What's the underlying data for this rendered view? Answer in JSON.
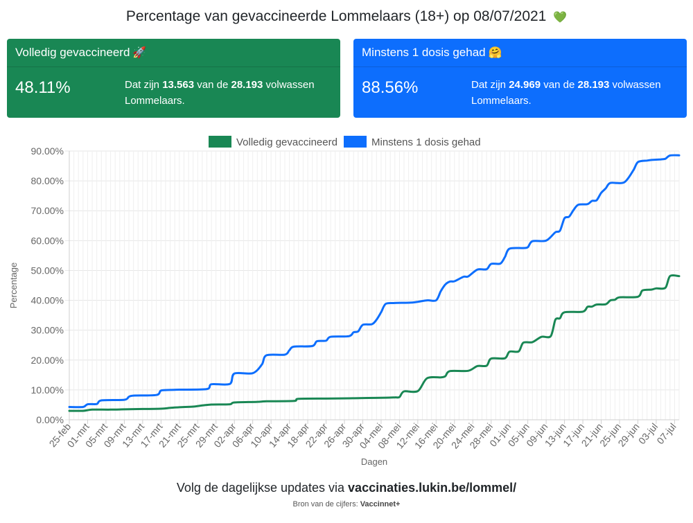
{
  "header": {
    "title": "Percentage van gevaccineerde Lommelaars (18+) op 08/07/2021",
    "title_emoji": "💚"
  },
  "cards": {
    "full": {
      "title": "Volledig gevaccineerd",
      "emoji": "🚀",
      "percent": "48.11%",
      "text_prefix": "Dat zijn",
      "count": "13.563",
      "text_mid": "van de",
      "total": "28.193",
      "text_suffix": "volwassen Lommelaars.",
      "color": "#198754"
    },
    "partial": {
      "title": "Minstens 1 dosis gehad",
      "emoji": "🤗",
      "percent": "88.56%",
      "text_prefix": "Dat zijn",
      "count": "24.969",
      "text_mid": "van de",
      "total": "28.193",
      "text_suffix": "volwassen Lommelaars.",
      "color": "#0d6efd"
    }
  },
  "footer": {
    "text": "Volg de dagelijkse updates via",
    "link": "vaccinaties.lukin.be/lommel/",
    "source_label": "Bron van de cijfers:",
    "source": "Vaccinnet+"
  },
  "chart_data": {
    "type": "line",
    "title": "",
    "xlabel": "Dagen",
    "ylabel": "Percentage",
    "ylim": [
      0,
      90
    ],
    "yticks": [
      "0.00%",
      "10.00%",
      "20.00%",
      "30.00%",
      "40.00%",
      "50.00%",
      "60.00%",
      "70.00%",
      "80.00%",
      "90.00%"
    ],
    "x_start": "2021-02-25",
    "x_end": "2021-07-08",
    "xticks": [
      "25-feb",
      "01-mrt",
      "05-mrt",
      "09-mrt",
      "13-mrt",
      "17-mrt",
      "21-mrt",
      "25-mrt",
      "29-mrt",
      "02-apr",
      "06-apr",
      "10-apr",
      "14-apr",
      "18-apr",
      "22-apr",
      "26-apr",
      "30-apr",
      "04-mei",
      "08-mei",
      "12-mei",
      "16-mei",
      "20-mei",
      "24-mei",
      "28-mei",
      "01-jun",
      "05-jun",
      "09-jun",
      "13-jun",
      "17-jun",
      "21-jun",
      "25-jun",
      "29-jun",
      "03-jul",
      "07-jul"
    ],
    "grid": true,
    "legend_position": "top",
    "series": [
      {
        "name": "Volledig gevaccineerd",
        "color": "#198754",
        "points": [
          [
            "2021-02-25",
            3.0
          ],
          [
            "2021-02-28",
            3.0
          ],
          [
            "2021-03-02",
            3.4
          ],
          [
            "2021-03-06",
            3.4
          ],
          [
            "2021-03-09",
            3.5
          ],
          [
            "2021-03-12",
            3.6
          ],
          [
            "2021-03-17",
            3.7
          ],
          [
            "2021-03-19",
            4.0
          ],
          [
            "2021-03-21",
            4.2
          ],
          [
            "2021-03-24",
            4.4
          ],
          [
            "2021-03-26",
            4.8
          ],
          [
            "2021-03-28",
            5.1
          ],
          [
            "2021-04-01",
            5.2
          ],
          [
            "2021-04-02",
            5.8
          ],
          [
            "2021-04-07",
            6.0
          ],
          [
            "2021-04-09",
            6.2
          ],
          [
            "2021-04-15",
            6.3
          ],
          [
            "2021-04-16",
            7.0
          ],
          [
            "2021-04-22",
            7.1
          ],
          [
            "2021-04-27",
            7.2
          ],
          [
            "2021-05-01",
            7.3
          ],
          [
            "2021-05-05",
            7.4
          ],
          [
            "2021-05-07",
            7.5
          ],
          [
            "2021-05-08",
            7.6
          ],
          [
            "2021-05-09",
            9.5
          ],
          [
            "2021-05-12",
            9.6
          ],
          [
            "2021-05-14",
            13.9
          ],
          [
            "2021-05-17",
            14.2
          ],
          [
            "2021-05-18",
            14.6
          ],
          [
            "2021-05-19",
            16.3
          ],
          [
            "2021-05-23",
            16.4
          ],
          [
            "2021-05-25",
            18.0
          ],
          [
            "2021-05-27",
            18.1
          ],
          [
            "2021-05-28",
            20.5
          ],
          [
            "2021-05-31",
            20.6
          ],
          [
            "2021-06-01",
            22.8
          ],
          [
            "2021-06-03",
            22.9
          ],
          [
            "2021-06-04",
            25.8
          ],
          [
            "2021-06-06",
            26.0
          ],
          [
            "2021-06-08",
            27.8
          ],
          [
            "2021-06-10",
            28.0
          ],
          [
            "2021-06-11",
            33.5
          ],
          [
            "2021-06-12",
            34.0
          ],
          [
            "2021-06-13",
            36.0
          ],
          [
            "2021-06-17",
            36.2
          ],
          [
            "2021-06-18",
            37.8
          ],
          [
            "2021-06-19",
            37.9
          ],
          [
            "2021-06-20",
            38.6
          ],
          [
            "2021-06-22",
            38.7
          ],
          [
            "2021-06-23",
            40.0
          ],
          [
            "2021-06-24",
            40.2
          ],
          [
            "2021-06-25",
            41.0
          ],
          [
            "2021-06-29",
            41.2
          ],
          [
            "2021-06-30",
            43.3
          ],
          [
            "2021-07-02",
            43.6
          ],
          [
            "2021-07-03",
            44.0
          ],
          [
            "2021-07-05",
            44.2
          ],
          [
            "2021-07-06",
            48.1
          ],
          [
            "2021-07-08",
            48.11
          ]
        ]
      },
      {
        "name": "Minstens 1 dosis gehad",
        "color": "#0d6efd",
        "points": [
          [
            "2021-02-25",
            4.3
          ],
          [
            "2021-02-28",
            4.3
          ],
          [
            "2021-03-01",
            5.2
          ],
          [
            "2021-03-03",
            5.3
          ],
          [
            "2021-03-04",
            6.5
          ],
          [
            "2021-03-09",
            6.7
          ],
          [
            "2021-03-10",
            7.7
          ],
          [
            "2021-03-11",
            8.1
          ],
          [
            "2021-03-16",
            8.3
          ],
          [
            "2021-03-17",
            9.8
          ],
          [
            "2021-03-19",
            10.0
          ],
          [
            "2021-03-21",
            10.1
          ],
          [
            "2021-03-27",
            10.3
          ],
          [
            "2021-03-28",
            11.9
          ],
          [
            "2021-04-01",
            12.0
          ],
          [
            "2021-04-02",
            15.5
          ],
          [
            "2021-04-06",
            15.6
          ],
          [
            "2021-04-08",
            18.5
          ],
          [
            "2021-04-09",
            21.6
          ],
          [
            "2021-04-13",
            21.8
          ],
          [
            "2021-04-14",
            23.3
          ],
          [
            "2021-04-15",
            24.5
          ],
          [
            "2021-04-19",
            24.7
          ],
          [
            "2021-04-20",
            26.3
          ],
          [
            "2021-04-22",
            26.5
          ],
          [
            "2021-04-23",
            27.8
          ],
          [
            "2021-04-27",
            28.0
          ],
          [
            "2021-04-28",
            29.3
          ],
          [
            "2021-04-29",
            29.6
          ],
          [
            "2021-04-30",
            31.8
          ],
          [
            "2021-05-02",
            32.0
          ],
          [
            "2021-05-03",
            33.5
          ],
          [
            "2021-05-04",
            36.0
          ],
          [
            "2021-05-05",
            38.8
          ],
          [
            "2021-05-07",
            39.1
          ],
          [
            "2021-05-11",
            39.3
          ],
          [
            "2021-05-14",
            40.0
          ],
          [
            "2021-05-16",
            40.0
          ],
          [
            "2021-05-17",
            43.0
          ],
          [
            "2021-05-18",
            45.3
          ],
          [
            "2021-05-19",
            46.3
          ],
          [
            "2021-05-20",
            46.4
          ],
          [
            "2021-05-22",
            47.9
          ],
          [
            "2021-05-23",
            48.0
          ],
          [
            "2021-05-25",
            50.3
          ],
          [
            "2021-05-27",
            50.4
          ],
          [
            "2021-05-28",
            52.2
          ],
          [
            "2021-05-30",
            52.3
          ],
          [
            "2021-05-31",
            54.5
          ],
          [
            "2021-06-01",
            57.3
          ],
          [
            "2021-06-04",
            57.5
          ],
          [
            "2021-06-05",
            57.8
          ],
          [
            "2021-06-06",
            59.8
          ],
          [
            "2021-06-09",
            60.0
          ],
          [
            "2021-06-11",
            62.8
          ],
          [
            "2021-06-12",
            63.3
          ],
          [
            "2021-06-13",
            67.5
          ],
          [
            "2021-06-14",
            68.0
          ],
          [
            "2021-06-15",
            70.3
          ],
          [
            "2021-06-16",
            72.0
          ],
          [
            "2021-06-18",
            72.2
          ],
          [
            "2021-06-19",
            73.3
          ],
          [
            "2021-06-20",
            73.5
          ],
          [
            "2021-06-21",
            76.0
          ],
          [
            "2021-06-22",
            77.5
          ],
          [
            "2021-06-23",
            79.3
          ],
          [
            "2021-06-26",
            79.5
          ],
          [
            "2021-06-28",
            83.5
          ],
          [
            "2021-06-29",
            86.3
          ],
          [
            "2021-07-01",
            86.8
          ],
          [
            "2021-07-02",
            87.0
          ],
          [
            "2021-07-04",
            87.2
          ],
          [
            "2021-07-05",
            87.4
          ],
          [
            "2021-07-06",
            88.5
          ],
          [
            "2021-07-08",
            88.56
          ]
        ]
      }
    ]
  }
}
